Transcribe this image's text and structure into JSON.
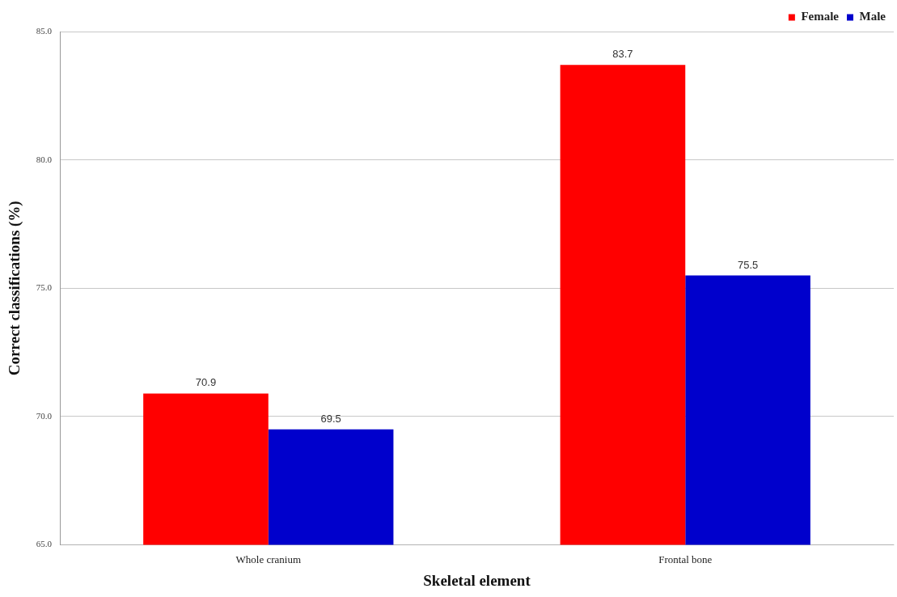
{
  "chart_data": {
    "type": "bar",
    "xlabel": "Skeletal element",
    "ylabel": "Correct classifications (%)",
    "categories": [
      "Whole cranium",
      "Frontal bone"
    ],
    "series": [
      {
        "name": "Female",
        "color": "#ff0000",
        "values": [
          70.9,
          83.7
        ]
      },
      {
        "name": "Male",
        "color": "#0000cc",
        "values": [
          69.5,
          75.5
        ]
      }
    ],
    "ylim": [
      65,
      85
    ],
    "yticks": [
      {
        "value": 65,
        "label": "65.0"
      },
      {
        "value": 70,
        "label": "70.0"
      },
      {
        "value": 75,
        "label": "75.0"
      },
      {
        "value": 80,
        "label": "80.0"
      },
      {
        "value": 85,
        "label": "85.0"
      }
    ],
    "grid": "y",
    "legend": "top right",
    "data_labels": true
  }
}
